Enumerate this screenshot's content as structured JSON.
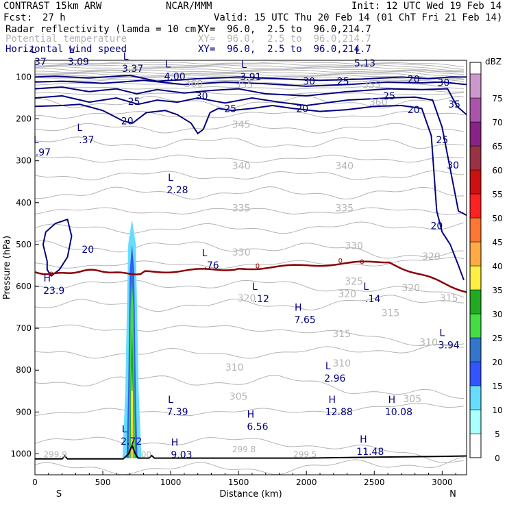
{
  "header": {
    "model": "CONTRAST 15km ARW",
    "center": "NCAR/MMM",
    "init": "Init: 12 UTC Wed 19 Feb 14",
    "fcst_label": "Fcst:",
    "fcst_value": "27 h",
    "valid": "Valid: 15 UTC Thu 20 Feb 14 (01 ChT Fri 21 Feb 14)",
    "fields": [
      {
        "name": "Radar reflectivity (lamda = 10 cm)",
        "xy": "XY=  96.0,  2.5 to  96.0,214.7",
        "color": "#000000"
      },
      {
        "name": "Potential temperature",
        "xy": "XY=  96.0,  2.5 to  96.0,214.7",
        "color": "#b4b4b4"
      },
      {
        "name": "Horizontal wind speed",
        "xy": "XY=  96.0,  2.5 to  96.0,214.7",
        "color": "#000080"
      }
    ]
  },
  "chart_data": {
    "type": "cross-section",
    "xlabel": "Distance (km)",
    "ylabel": "Pressure (hPa)",
    "xlim": [
      0,
      3180
    ],
    "ylim": [
      1050,
      60
    ],
    "xticks": [
      0,
      500,
      1000,
      1500,
      2000,
      2500,
      3000
    ],
    "yticks": [
      100,
      200,
      300,
      400,
      500,
      600,
      700,
      800,
      900,
      1000
    ],
    "endpoints": {
      "left": "S",
      "right": "N"
    },
    "colorbar": {
      "unit": "dBZ",
      "levels": [
        0,
        5,
        10,
        15,
        20,
        25,
        30,
        35,
        40,
        45,
        50,
        55,
        60,
        65,
        70,
        75
      ],
      "colors": [
        "#ffffff",
        "#aaffff",
        "#66ddff",
        "#3355ff",
        "#3377cc",
        "#44dd44",
        "#22aa22",
        "#ffee44",
        "#ffaa44",
        "#ff7733",
        "#ff2222",
        "#cc1111",
        "#993344",
        "#882288",
        "#aa55aa",
        "#cc99cc"
      ]
    },
    "theta_labels": [
      {
        "text": "345",
        "x": 1520,
        "p": 213
      },
      {
        "text": "340",
        "x": 1520,
        "p": 312
      },
      {
        "text": "340",
        "x": 2280,
        "p": 312
      },
      {
        "text": "335",
        "x": 1520,
        "p": 413
      },
      {
        "text": "335",
        "x": 2280,
        "p": 413
      },
      {
        "text": "330",
        "x": 1520,
        "p": 518
      },
      {
        "text": "330",
        "x": 2350,
        "p": 503
      },
      {
        "text": "325",
        "x": 2350,
        "p": 588
      },
      {
        "text": "320",
        "x": 1560,
        "p": 628
      },
      {
        "text": "320",
        "x": 2300,
        "p": 618
      },
      {
        "text": "320",
        "x": 2770,
        "p": 603
      },
      {
        "text": "320",
        "x": 2920,
        "p": 528
      },
      {
        "text": "315",
        "x": 2260,
        "p": 713
      },
      {
        "text": "315",
        "x": 2620,
        "p": 663
      },
      {
        "text": "315",
        "x": 3050,
        "p": 628
      },
      {
        "text": "310",
        "x": 1470,
        "p": 793
      },
      {
        "text": "310",
        "x": 2260,
        "p": 783
      },
      {
        "text": "310",
        "x": 2900,
        "p": 733
      },
      {
        "text": "305",
        "x": 1500,
        "p": 863
      },
      {
        "text": "305",
        "x": 2780,
        "p": 868
      },
      {
        "text": "355",
        "x": 1540,
        "p": 118
      },
      {
        "text": "355",
        "x": 2480,
        "p": 118
      },
      {
        "text": "360",
        "x": 1170,
        "p": 116
      },
      {
        "text": "360",
        "x": 2530,
        "p": 160
      }
    ],
    "wind_labels": [
      {
        "text": "30",
        "x": 2020,
        "p": 110
      },
      {
        "text": "25",
        "x": 2270,
        "p": 110
      },
      {
        "text": "20",
        "x": 2790,
        "p": 105
      },
      {
        "text": "30",
        "x": 3010,
        "p": 113
      },
      {
        "text": "25",
        "x": 2610,
        "p": 145
      },
      {
        "text": "35",
        "x": 3090,
        "p": 165
      },
      {
        "text": "20",
        "x": 2790,
        "p": 178
      },
      {
        "text": "25",
        "x": 3000,
        "p": 250
      },
      {
        "text": "30",
        "x": 3080,
        "p": 310
      },
      {
        "text": "20",
        "x": 2960,
        "p": 455
      },
      {
        "text": "25",
        "x": 730,
        "p": 158
      },
      {
        "text": "30",
        "x": 1230,
        "p": 145
      },
      {
        "text": "25",
        "x": 1440,
        "p": 175
      },
      {
        "text": "20",
        "x": 1970,
        "p": 175
      },
      {
        "text": "20",
        "x": 680,
        "p": 205
      },
      {
        "text": "20",
        "x": 390,
        "p": 512
      }
    ],
    "freezing_level_label": "0",
    "pressure_centers": [
      {
        "type": "L",
        "value": "3.09",
        "x": 320,
        "p": 62
      },
      {
        "type": "L",
        "value": "3.37",
        "x": 720,
        "p": 78
      },
      {
        "type": "L",
        "value": "4.00",
        "x": 1030,
        "p": 97
      },
      {
        "type": "L",
        "value": "3.91",
        "x": 1590,
        "p": 98
      },
      {
        "type": "L",
        "value": "5.13",
        "x": 2430,
        "p": 65
      },
      {
        "type": "L",
        "value": "37",
        "x": 40,
        "p": 62
      },
      {
        "type": "L",
        "value": ".97",
        "x": 60,
        "p": 278
      },
      {
        "type": "L",
        "value": ".37",
        "x": 380,
        "p": 248
      },
      {
        "type": "L",
        "value": "2.28",
        "x": 1050,
        "p": 368
      },
      {
        "type": "L",
        "value": ".76",
        "x": 1300,
        "p": 548
      },
      {
        "type": "H",
        "value": "23.9",
        "x": 140,
        "p": 608
      },
      {
        "type": "L",
        "value": ".12",
        "x": 1670,
        "p": 628
      },
      {
        "type": "L",
        "value": ".14",
        "x": 2490,
        "p": 628
      },
      {
        "type": "H",
        "value": "7.65",
        "x": 1990,
        "p": 678
      },
      {
        "type": "L",
        "value": "3.94",
        "x": 3050,
        "p": 738
      },
      {
        "type": "L",
        "value": "2.96",
        "x": 2210,
        "p": 818
      },
      {
        "type": "L",
        "value": "7.39",
        "x": 1050,
        "p": 898
      },
      {
        "type": "H",
        "value": "6.56",
        "x": 1640,
        "p": 933
      },
      {
        "type": "H",
        "value": "12.88",
        "x": 2240,
        "p": 898
      },
      {
        "type": "H",
        "value": "10.08",
        "x": 2680,
        "p": 898
      },
      {
        "type": "L",
        "value": "2.72",
        "x": 710,
        "p": 968
      },
      {
        "type": "H",
        "value": "9.03",
        "x": 1080,
        "p": 1000
      },
      {
        "type": "H",
        "value": "11.48",
        "x": 2470,
        "p": 993
      }
    ],
    "surface_labels": [
      {
        "text": "299.9",
        "x": 150,
        "p": 1000
      },
      {
        "text": "299.8",
        "x": 1540,
        "p": 988
      },
      {
        "text": "299.5",
        "x": 1990,
        "p": 1000
      },
      {
        "text": "00",
        "x": 820,
        "p": 1000
      }
    ]
  }
}
